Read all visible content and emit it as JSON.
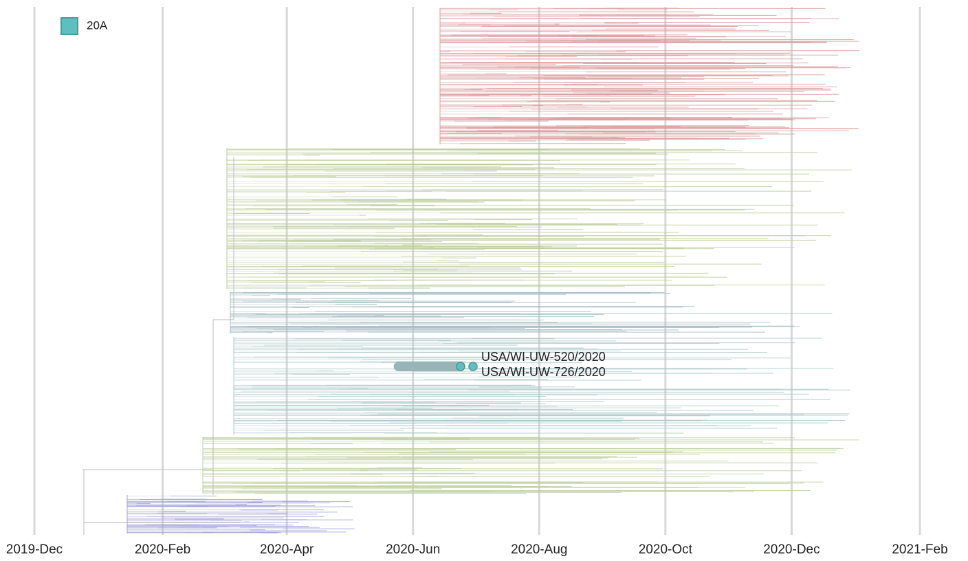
{
  "chart_data": {
    "type": "tree",
    "xlim": [
      0,
      428
    ],
    "xticks": [
      {
        "value": 0,
        "label": "2019-Dec"
      },
      {
        "value": 62,
        "label": "2020-Feb"
      },
      {
        "value": 122,
        "label": "2020-Apr"
      },
      {
        "value": 183,
        "label": "2020-Jun"
      },
      {
        "value": 244,
        "label": "2020-Aug"
      },
      {
        "value": 305,
        "label": "2020-Oct"
      },
      {
        "value": 366,
        "label": "2020-Dec"
      },
      {
        "value": 428,
        "label": "2021-Feb"
      }
    ],
    "grid": true,
    "legend": {
      "position": "top-left",
      "items": [
        {
          "name": "20A",
          "color": "#5fbfbf"
        }
      ]
    },
    "highlight_branch_x": [
      176,
      206
    ],
    "tips": [
      {
        "name": "USA/WI-UW-520/2020",
        "x": 206,
        "color": "#5fbfbf"
      },
      {
        "name": "USA/WI-UW-726/2020",
        "x": 212,
        "color": "#5fbfbf"
      }
    ]
  }
}
